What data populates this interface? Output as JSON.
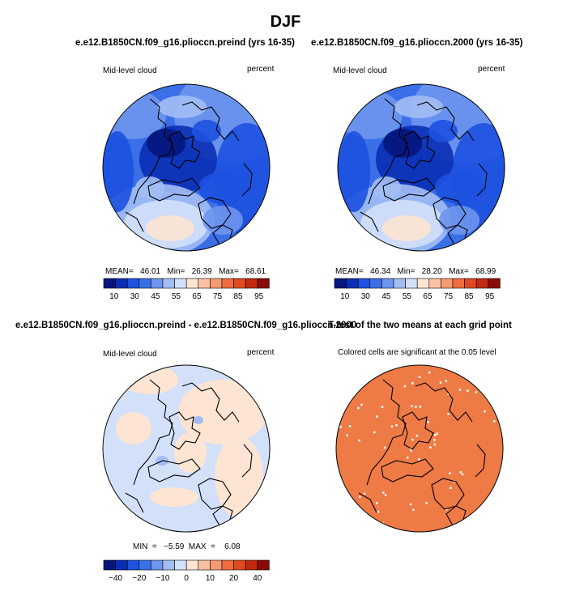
{
  "title": "DJF",
  "panels": [
    {
      "title": "e.e12.B1850CN.f09_g16.plioccn.preind (yrs 16-35)",
      "left_label": "Mid-level cloud",
      "right_label": "percent",
      "stats": "MEAN=   46.01   Min=   26.39   Max=   68.61"
    },
    {
      "title": "e.e12.B1850CN.f09_g16.plioccn.2000 (yrs 16-35)",
      "left_label": "Mid-level cloud",
      "right_label": "percent",
      "stats": "MEAN=   46.34   Min=   28.20   Max=   68.99"
    },
    {
      "title": "e.e12.B1850CN.f09_g16.plioccn.preind - e.e12.B1850CN.f09_g16.plioccn.2000",
      "left_label": "Mid-level cloud",
      "right_label": "percent",
      "stats": "MIN  =   −5.59  MAX  =    6.08"
    },
    {
      "title": "T-test of the two means at each grid point",
      "subtitle": "Colored cells are significant at the 0.05 level"
    }
  ],
  "chart_data": [
    {
      "type": "heatmap",
      "projection": "north polar stereographic",
      "variable": "Mid-level cloud",
      "units": "percent",
      "stats": {
        "mean": 46.01,
        "min": 26.39,
        "max": 68.61
      },
      "colorbar_labels": [
        "10",
        "30",
        "45",
        "55",
        "65",
        "75",
        "85",
        "95"
      ]
    },
    {
      "type": "heatmap",
      "projection": "north polar stereographic",
      "variable": "Mid-level cloud",
      "units": "percent",
      "stats": {
        "mean": 46.34,
        "min": 28.2,
        "max": 68.99
      },
      "colorbar_labels": [
        "10",
        "30",
        "45",
        "55",
        "65",
        "75",
        "85",
        "95"
      ]
    },
    {
      "type": "heatmap",
      "projection": "north polar stereographic",
      "variable": "Mid-level cloud",
      "units": "percent",
      "stats": {
        "min": -5.59,
        "max": 6.08
      },
      "colorbar_labels": [
        "−40",
        "−20",
        "−10",
        "0",
        "10",
        "20",
        "40"
      ]
    },
    {
      "type": "heatmap",
      "projection": "north polar stereographic",
      "significance_level": 0.05
    }
  ],
  "colors": {
    "colorbar": [
      "#06167c",
      "#0a2fb4",
      "#1d51e0",
      "#3a6fe8",
      "#6e96ee",
      "#a3bef4",
      "#d2e0f9",
      "#fde4d3",
      "#f9c1a2",
      "#f59a72",
      "#ef6d3f",
      "#e04a1f",
      "#c22a10",
      "#8a0b05"
    ],
    "significance": "#ee7a45"
  }
}
